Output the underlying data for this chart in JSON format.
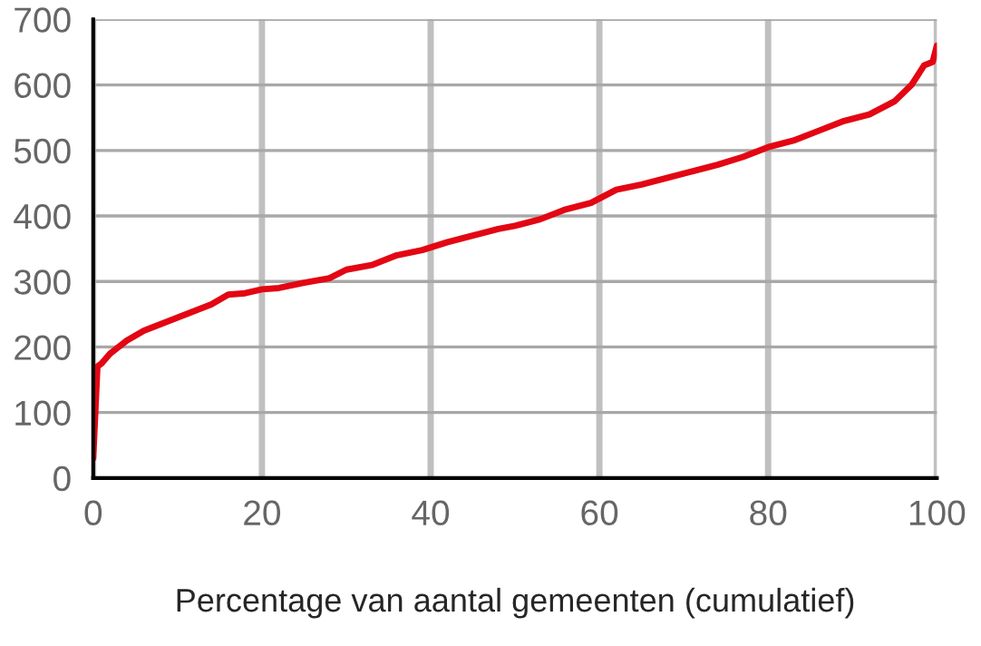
{
  "chart_data": {
    "type": "line",
    "xlabel": "Percentage van aantal gemeenten (cumulatief)",
    "x": [
      0,
      0.5,
      1,
      2,
      4,
      6,
      8,
      10,
      12,
      14,
      16,
      18,
      20,
      22,
      25,
      28,
      30,
      33,
      36,
      39,
      42,
      45,
      48,
      50,
      53,
      56,
      59,
      62,
      65,
      68,
      71,
      74,
      77,
      80,
      83,
      86,
      89,
      92,
      95,
      97,
      98.5,
      99.5,
      100
    ],
    "series": [
      {
        "color": "#e30613",
        "values": [
          30,
          170,
          175,
          190,
          210,
          225,
          235,
          245,
          255,
          265,
          280,
          282,
          288,
          290,
          298,
          305,
          318,
          325,
          340,
          348,
          360,
          370,
          380,
          385,
          395,
          410,
          420,
          440,
          448,
          458,
          468,
          478,
          490,
          505,
          515,
          530,
          545,
          555,
          575,
          600,
          630,
          635,
          660
        ]
      }
    ],
    "xlim": [
      0,
      100
    ],
    "xticks": [
      0,
      20,
      40,
      60,
      80,
      100
    ],
    "ylim": [
      0,
      700
    ],
    "yticks": [
      0,
      100,
      200,
      300,
      400,
      500,
      600,
      700
    ],
    "grid": true,
    "marker": "none",
    "line_style": "solid"
  }
}
